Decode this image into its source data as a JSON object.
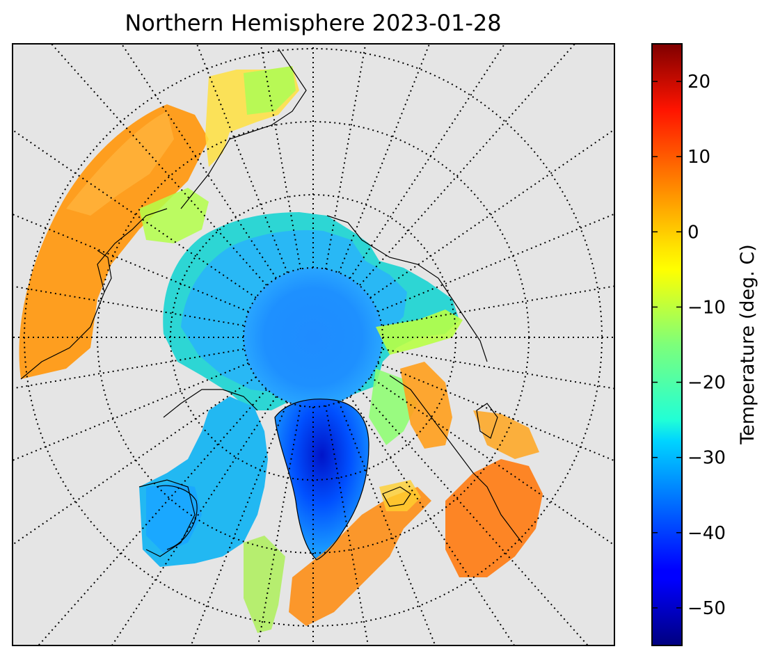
{
  "map": {
    "title": "Northern Hemisphere 2023-01-28",
    "projection": "north-polar-stereographic",
    "background_color": "#e5e5e5",
    "graticule": "dotted"
  },
  "colorbar": {
    "label": "Temperature (deg. C)",
    "colormap": "jet",
    "range": [
      -55,
      25
    ],
    "ticks": [
      "20",
      "10",
      "0",
      "−10",
      "−20",
      "−30",
      "−40",
      "−50"
    ]
  }
}
